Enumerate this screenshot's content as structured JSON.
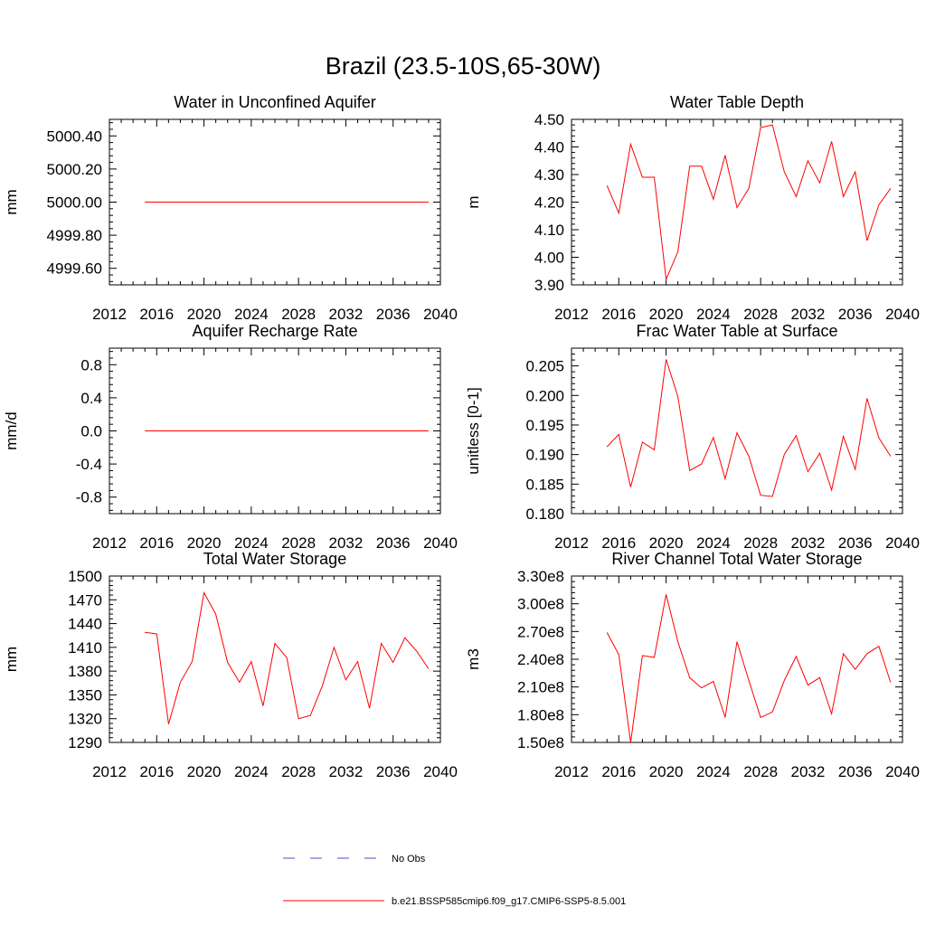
{
  "figure": {
    "title": "Brazil (23.5-10S,65-30W)"
  },
  "legend": {
    "position": "bottom-center",
    "entries": [
      {
        "label": "No Obs",
        "color": "#4c4cc4",
        "style": "dashed"
      },
      {
        "label": "b.e21.BSSP585cmip6.f09_g17.CMIP6-SSP5-8.5.001",
        "color": "#ff0000",
        "style": "solid"
      }
    ]
  },
  "chart_data": [
    {
      "type": "line",
      "title": "Water in Unconfined Aquifer",
      "ylabel": "mm",
      "xlim": [
        2012,
        2040
      ],
      "xticks": [
        2012,
        2016,
        2020,
        2024,
        2028,
        2032,
        2036,
        2040
      ],
      "ylim": [
        4999.5,
        5000.5
      ],
      "yticks": [
        4999.6,
        4999.8,
        5000.0,
        5000.2,
        5000.4
      ],
      "ytick_labels": [
        "4999.60",
        "4999.80",
        "5000.00",
        "5000.20",
        "5000.40"
      ],
      "series": [
        {
          "color": "#ff0000",
          "x": [
            2015,
            2039
          ],
          "y": [
            5000.0,
            5000.0
          ]
        }
      ]
    },
    {
      "type": "line",
      "title": "Water Table Depth",
      "ylabel": "m",
      "xlim": [
        2012,
        2040
      ],
      "xticks": [
        2012,
        2016,
        2020,
        2024,
        2028,
        2032,
        2036,
        2040
      ],
      "ylim": [
        3.9,
        4.5
      ],
      "yticks": [
        3.9,
        4.0,
        4.1,
        4.2,
        4.3,
        4.4,
        4.5
      ],
      "ytick_labels": [
        "3.90",
        "4.00",
        "4.10",
        "4.20",
        "4.30",
        "4.40",
        "4.50"
      ],
      "series": [
        {
          "color": "#ff0000",
          "x": [
            2015,
            2016,
            2017,
            2018,
            2019,
            2020,
            2021,
            2022,
            2023,
            2024,
            2025,
            2026,
            2027,
            2028,
            2029,
            2030,
            2031,
            2032,
            2033,
            2034,
            2035,
            2036,
            2037,
            2038,
            2039
          ],
          "y": [
            4.26,
            4.16,
            4.41,
            4.29,
            4.29,
            3.92,
            4.02,
            4.33,
            4.33,
            4.21,
            4.37,
            4.18,
            4.25,
            4.47,
            4.48,
            4.31,
            4.22,
            4.35,
            4.27,
            4.42,
            4.22,
            4.31,
            4.06,
            4.19,
            4.25
          ]
        }
      ]
    },
    {
      "type": "line",
      "title": "Aquifer Recharge Rate",
      "ylabel": "mm/d",
      "xlim": [
        2012,
        2040
      ],
      "xticks": [
        2012,
        2016,
        2020,
        2024,
        2028,
        2032,
        2036,
        2040
      ],
      "ylim": [
        -1.0,
        1.0
      ],
      "yticks": [
        -0.8,
        -0.4,
        0.0,
        0.4,
        0.8
      ],
      "ytick_labels": [
        "-0.8",
        "-0.4",
        "0.0",
        "0.4",
        "0.8"
      ],
      "series": [
        {
          "color": "#ff0000",
          "x": [
            2015,
            2039
          ],
          "y": [
            0.0,
            0.0
          ]
        }
      ]
    },
    {
      "type": "line",
      "title": "Frac Water Table at Surface",
      "ylabel": "unitless [0-1]",
      "xlim": [
        2012,
        2040
      ],
      "xticks": [
        2012,
        2016,
        2020,
        2024,
        2028,
        2032,
        2036,
        2040
      ],
      "ylim": [
        0.18,
        0.208
      ],
      "yticks": [
        0.18,
        0.185,
        0.19,
        0.195,
        0.2,
        0.205
      ],
      "ytick_labels": [
        "0.180",
        "0.185",
        "0.190",
        "0.195",
        "0.200",
        "0.205"
      ],
      "series": [
        {
          "color": "#ff0000",
          "x": [
            2015,
            2016,
            2017,
            2018,
            2019,
            2020,
            2021,
            2022,
            2023,
            2024,
            2025,
            2026,
            2027,
            2028,
            2029,
            2030,
            2031,
            2032,
            2033,
            2034,
            2035,
            2036,
            2037,
            2038,
            2039
          ],
          "y": [
            0.1913,
            0.1934,
            0.1845,
            0.1921,
            0.1908,
            0.2061,
            0.1998,
            0.1873,
            0.1884,
            0.1929,
            0.1859,
            0.1937,
            0.1897,
            0.1831,
            0.1829,
            0.19,
            0.1932,
            0.1871,
            0.1902,
            0.184,
            0.1931,
            0.1875,
            0.1995,
            0.1928,
            0.1897
          ]
        }
      ]
    },
    {
      "type": "line",
      "title": "Total Water Storage",
      "ylabel": "mm",
      "xlim": [
        2012,
        2040
      ],
      "xticks": [
        2012,
        2016,
        2020,
        2024,
        2028,
        2032,
        2036,
        2040
      ],
      "ylim": [
        1290,
        1500
      ],
      "yticks": [
        1290,
        1320,
        1350,
        1380,
        1410,
        1440,
        1470,
        1500
      ],
      "ytick_labels": [
        "1290",
        "1320",
        "1350",
        "1380",
        "1410",
        "1440",
        "1470",
        "1500"
      ],
      "series": [
        {
          "color": "#ff0000",
          "x": [
            2015,
            2016,
            2017,
            2018,
            2019,
            2020,
            2021,
            2022,
            2023,
            2024,
            2025,
            2026,
            2027,
            2028,
            2029,
            2030,
            2031,
            2032,
            2033,
            2034,
            2035,
            2036,
            2037,
            2038,
            2039
          ],
          "y": [
            1429,
            1427,
            1313,
            1366,
            1392,
            1479,
            1452,
            1391,
            1366,
            1392,
            1336,
            1415,
            1397,
            1320,
            1324,
            1361,
            1410,
            1369,
            1392,
            1333,
            1415,
            1391,
            1422,
            1405,
            1383
          ]
        }
      ]
    },
    {
      "type": "line",
      "title": "River Channel Total Water Storage",
      "ylabel": "m3",
      "xlim": [
        2012,
        2040
      ],
      "xticks": [
        2012,
        2016,
        2020,
        2024,
        2028,
        2032,
        2036,
        2040
      ],
      "ylim": [
        150000000,
        330000000
      ],
      "yticks": [
        150000000,
        180000000,
        210000000,
        240000000,
        270000000,
        300000000,
        330000000
      ],
      "ytick_labels": [
        "1.50e8",
        "1.80e8",
        "2.10e8",
        "2.40e8",
        "2.70e8",
        "3.00e8",
        "3.30e8"
      ],
      "series": [
        {
          "color": "#ff0000",
          "x": [
            2015,
            2016,
            2017,
            2018,
            2019,
            2020,
            2021,
            2022,
            2023,
            2024,
            2025,
            2026,
            2027,
            2028,
            2029,
            2030,
            2031,
            2032,
            2033,
            2034,
            2035,
            2036,
            2037,
            2038,
            2039
          ],
          "y": [
            269000000,
            245000000,
            150000000,
            244000000,
            242000000,
            310000000,
            259000000,
            220000000,
            209000000,
            216000000,
            177000000,
            259000000,
            217000000,
            177000000,
            183000000,
            217000000,
            243000000,
            212000000,
            220000000,
            181000000,
            246000000,
            229000000,
            246000000,
            254000000,
            215000000
          ]
        }
      ]
    }
  ]
}
